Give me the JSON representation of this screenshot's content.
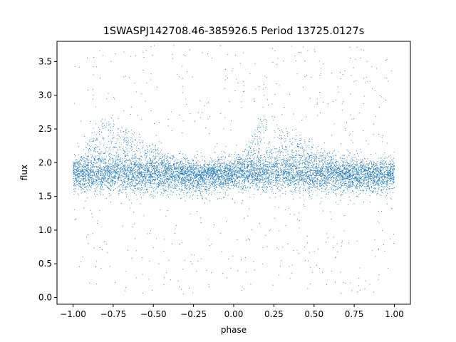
{
  "chart_data": {
    "type": "scatter",
    "title": "1SWASPJ142708.46-385926.5 Period 13725.0127s",
    "xlabel": "phase",
    "ylabel": "flux",
    "xlim": [
      -1.1,
      1.1
    ],
    "ylim": [
      -0.1,
      3.8
    ],
    "x_ticks": [
      -1.0,
      -0.75,
      -0.5,
      -0.25,
      0.0,
      0.25,
      0.5,
      0.75,
      1.0
    ],
    "x_tick_labels": [
      "−1.00",
      "−0.75",
      "−0.50",
      "−0.25",
      "0.00",
      "0.25",
      "0.50",
      "0.75",
      "1.00"
    ],
    "y_ticks": [
      0.0,
      0.5,
      1.0,
      1.5,
      2.0,
      2.5,
      3.0,
      3.5
    ],
    "y_tick_labels": [
      "0.0",
      "0.5",
      "1.0",
      "1.5",
      "2.0",
      "2.5",
      "3.0",
      "3.5"
    ],
    "grid": false,
    "legend": "none",
    "marker_color": "#1f77b4",
    "series": [
      {
        "x": [
          -1.0,
          -0.95,
          -0.9,
          -0.85,
          -0.8,
          -0.75,
          -0.7,
          -0.65,
          -0.6,
          -0.55,
          -0.5,
          -0.45,
          -0.4,
          -0.35,
          -0.3,
          -0.25,
          -0.2,
          -0.15,
          -0.1,
          -0.05,
          0.0,
          0.05,
          0.1,
          0.15,
          0.2,
          0.25,
          0.3,
          0.35,
          0.4,
          0.45,
          0.5,
          0.55,
          0.6,
          0.65,
          0.7,
          0.75,
          0.8,
          0.85,
          0.9,
          0.95,
          1.0
        ],
        "y_core": [
          1.82,
          1.82,
          1.83,
          1.83,
          1.84,
          1.84,
          1.83,
          1.83,
          1.82,
          1.82,
          1.81,
          1.81,
          1.8,
          1.8,
          1.8,
          1.79,
          1.79,
          1.8,
          1.8,
          1.81,
          1.82,
          1.82,
          1.83,
          1.83,
          1.84,
          1.84,
          1.83,
          1.83,
          1.82,
          1.82,
          1.81,
          1.81,
          1.8,
          1.8,
          1.8,
          1.79,
          1.79,
          1.8,
          1.8,
          1.81,
          1.82
        ],
        "y_upper": [
          1.95,
          2.05,
          2.3,
          2.6,
          2.65,
          2.62,
          2.55,
          2.45,
          2.38,
          2.3,
          2.22,
          2.15,
          2.08,
          2.02,
          1.98,
          1.95,
          1.93,
          1.92,
          1.91,
          1.93,
          1.95,
          2.05,
          2.3,
          2.6,
          2.65,
          2.62,
          2.55,
          2.45,
          2.38,
          2.3,
          2.22,
          2.15,
          2.08,
          2.02,
          1.98,
          1.95,
          1.93,
          1.92,
          1.91,
          1.93,
          1.95
        ],
        "y_min": 0.05,
        "y_max": 3.75
      }
    ]
  }
}
